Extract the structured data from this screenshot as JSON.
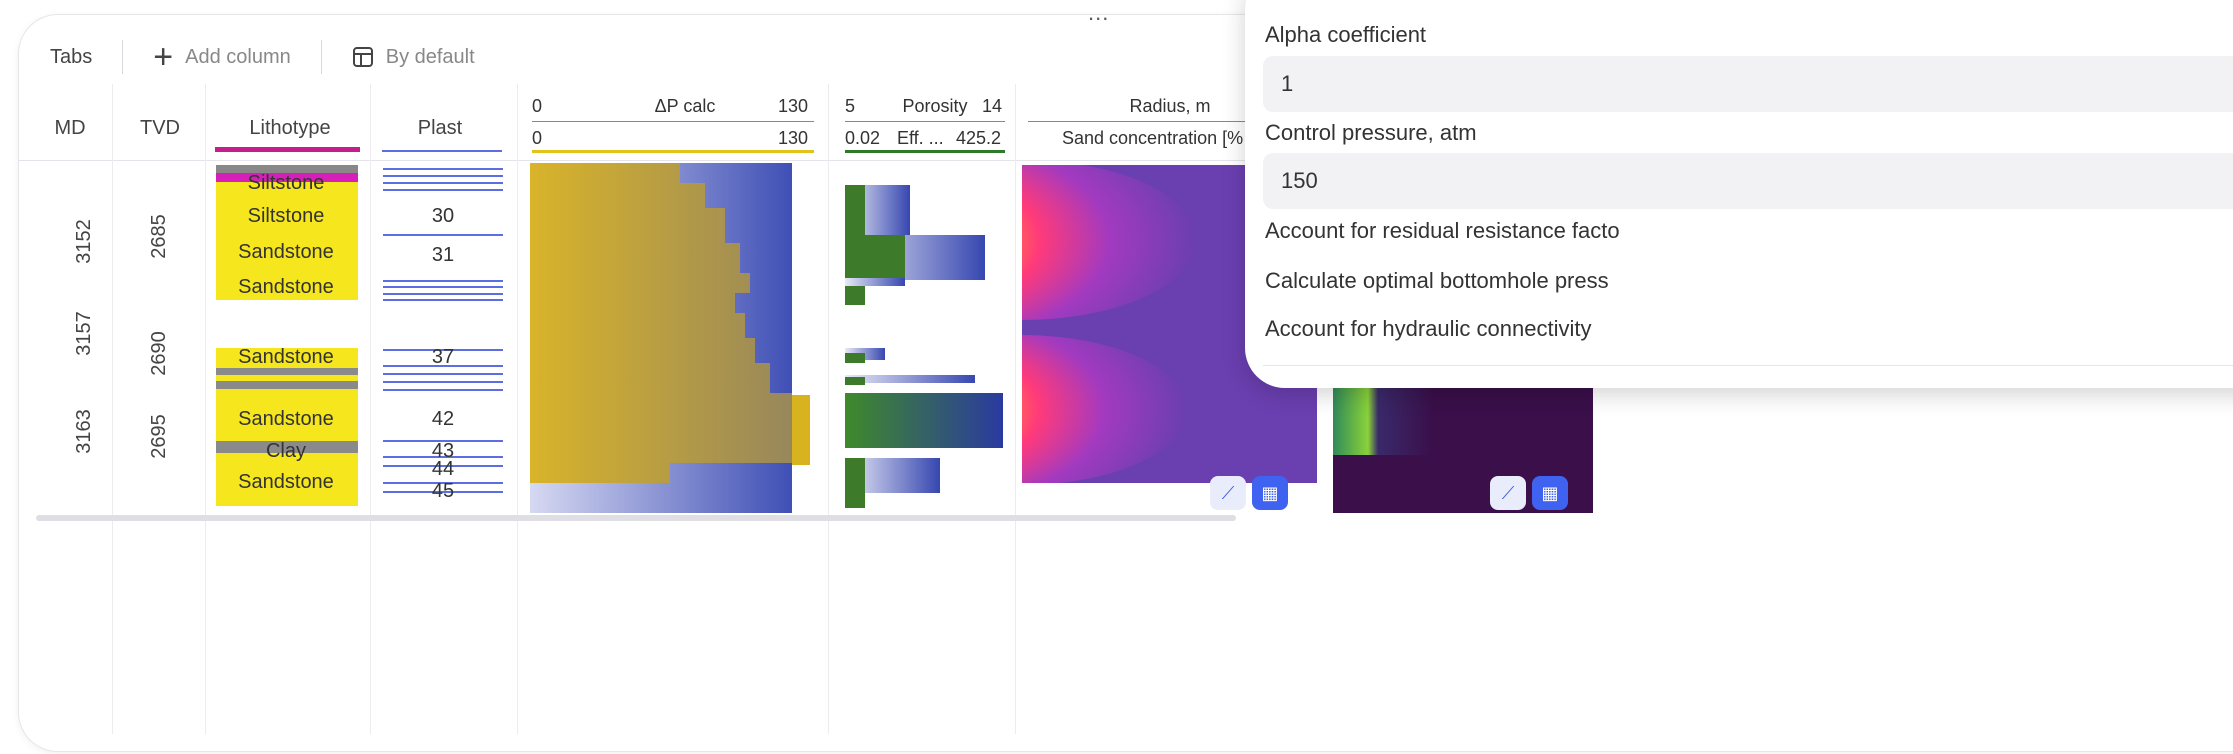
{
  "toolbar": {
    "tabs_label": "Tabs",
    "add_column_label": "Add column",
    "by_default_label": "By default"
  },
  "columns": {
    "md": "MD",
    "tvd": "TVD",
    "lithotype": "Lithotype",
    "plast": "Plast",
    "dp": {
      "min": "0",
      "title": "ΔP calc",
      "max": "130",
      "min2": "0",
      "max2": "130"
    },
    "porosity": {
      "min": "5",
      "title": "Porosity",
      "max": "14",
      "min2": "0.02",
      "title2": "Eff. ...",
      "max2": "425.2"
    },
    "radius": {
      "title": "Radius, m",
      "subtitle": "Sand concentration [%"
    }
  },
  "md_ticks": [
    "3152",
    "3157",
    "3163"
  ],
  "tvd_ticks": [
    "2685",
    "2690",
    "2695"
  ],
  "lithology": [
    "Siltstone",
    "Siltstone",
    "Sandstone",
    "Sandstone",
    "Sandstone",
    "Sandstone",
    "Clay",
    "Sandstone"
  ],
  "plast_numbers": [
    "30",
    "31",
    "37",
    "42",
    "43",
    "44",
    "45"
  ],
  "panel": {
    "alpha_label": "Alpha coefficient",
    "alpha_value": "1",
    "pressure_label": "Control pressure, atm",
    "pressure_value": "150",
    "opt1": "Account for residual resistance facto",
    "opt2": "Calculate optimal bottomhole press",
    "opt3": "Account for hydraulic connectivity"
  },
  "colors": {
    "accent": "#3f63f0",
    "lithology": "#f5e61e",
    "plast": "#5d6ee0",
    "dp_fill": "#d9b21f",
    "porosity_fill": "#4a7a2a",
    "heatmap_base": "#6a3fb0"
  },
  "menu_ellipsis": "..."
}
